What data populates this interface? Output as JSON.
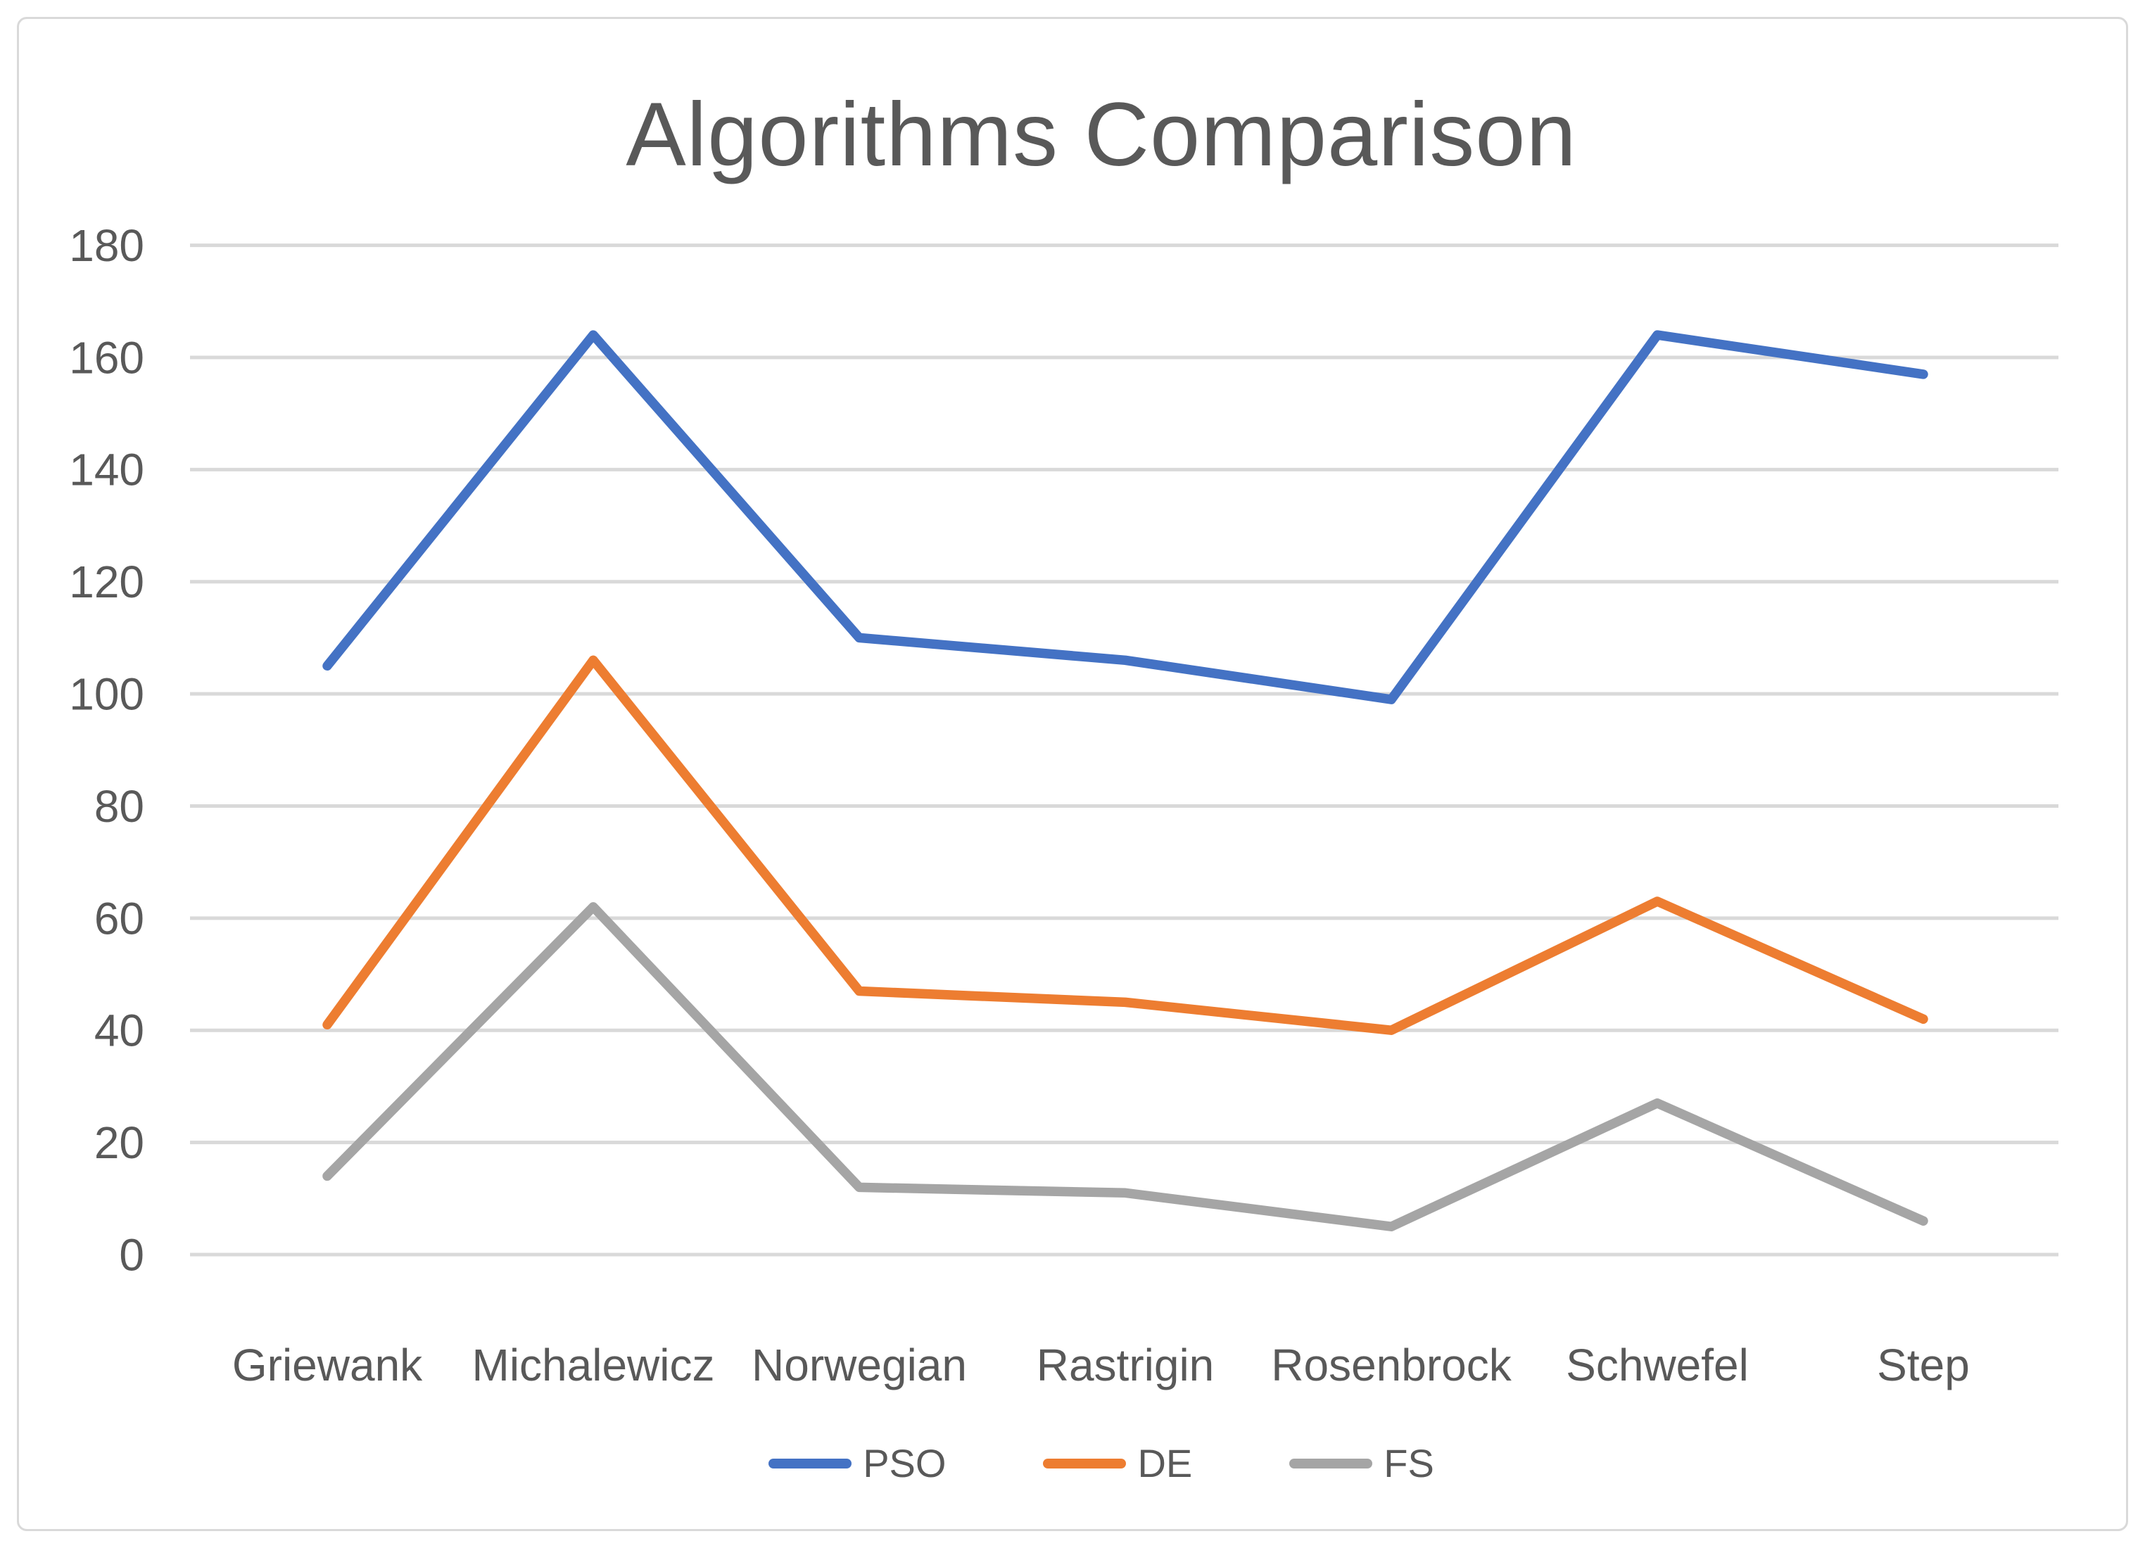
{
  "chart_data": {
    "type": "line",
    "title": "Algorithms Comparison",
    "categories": [
      "Griewank",
      "Michalewicz",
      "Norwegian",
      "Rastrigin",
      "Rosenbrock",
      "Schwefel",
      "Step"
    ],
    "series": [
      {
        "name": "PSO",
        "color": "#4472C4",
        "values": [
          105,
          164,
          110,
          106,
          99,
          164,
          157
        ]
      },
      {
        "name": "DE",
        "color": "#ED7D31",
        "values": [
          41,
          106,
          47,
          45,
          40,
          63,
          42
        ]
      },
      {
        "name": "FS",
        "color": "#A5A5A5",
        "values": [
          14,
          62,
          12,
          11,
          5,
          27,
          6
        ]
      }
    ],
    "xlabel": "",
    "ylabel": "",
    "ylim": [
      0,
      180
    ],
    "yticks": [
      0,
      20,
      40,
      60,
      80,
      100,
      120,
      140,
      160,
      180
    ],
    "grid": true,
    "legend_position": "bottom",
    "colors": {
      "text": "#595959",
      "gridline": "#D9D9D9",
      "frame_border": "#D9D9D9",
      "background": "#FFFFFF"
    }
  }
}
